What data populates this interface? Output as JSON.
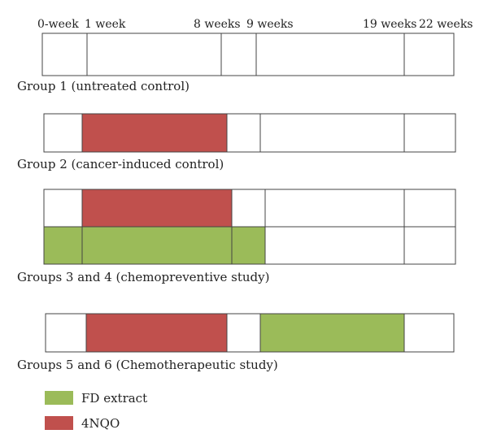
{
  "timeline": {
    "labels": [
      "0-week",
      "1 week",
      "8 weeks",
      "9 weeks",
      "19 weeks",
      "22 weeks"
    ]
  },
  "groups": [
    {
      "label": "Group 1 (untreated control)"
    },
    {
      "label": "Group 2 (cancer-induced control)"
    },
    {
      "label": "Groups 3 and 4 (chemopreventive study)"
    },
    {
      "label": "Groups 5 and 6 (Chemotherapeutic study)"
    }
  ],
  "legend": {
    "items": [
      {
        "label": "FD extract",
        "color": "#9bbb59"
      },
      {
        "label": "4NQO",
        "color": "#c0504d"
      }
    ]
  },
  "colors": {
    "fd_extract": "#9bbb59",
    "nqo": "#c0504d",
    "border": "#444444"
  }
}
